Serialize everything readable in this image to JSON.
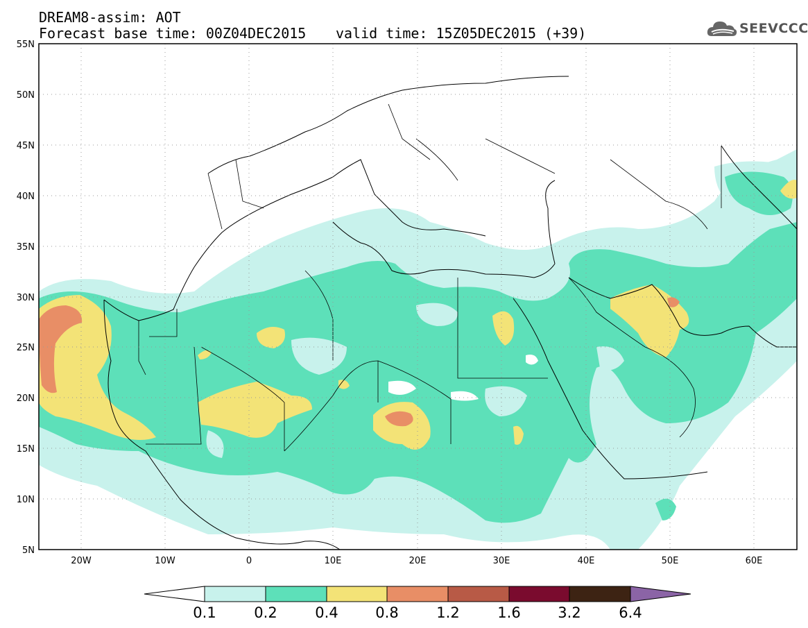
{
  "title_line1": "DREAM8-assim: AOT",
  "title_line2": "Forecast base time: 00Z04DEC2015",
  "valid_time": "valid time: 15Z05DEC2015 (+39)",
  "logo_text": "SEEVCCC",
  "map": {
    "lon_range": [
      -25,
      65
    ],
    "lat_range": [
      5,
      55
    ],
    "lat_ticks": [
      "55N",
      "50N",
      "45N",
      "40N",
      "35N",
      "30N",
      "25N",
      "20N",
      "15N",
      "10N",
      "5N"
    ],
    "lon_ticks": [
      "20W",
      "10W",
      "0",
      "10E",
      "20E",
      "30E",
      "40E",
      "50E",
      "60E"
    ],
    "grid": "dotted"
  },
  "colorbar": {
    "levels": [
      "0.1",
      "0.2",
      "0.4",
      "0.8",
      "1.2",
      "1.6",
      "3.2",
      "6.4"
    ],
    "colors": [
      "#ffffff",
      "#c8f2ec",
      "#5de0b9",
      "#f3e377",
      "#e88e66",
      "#b85a46",
      "#7a0b2e",
      "#3d2313",
      "#8b64a6"
    ]
  }
}
